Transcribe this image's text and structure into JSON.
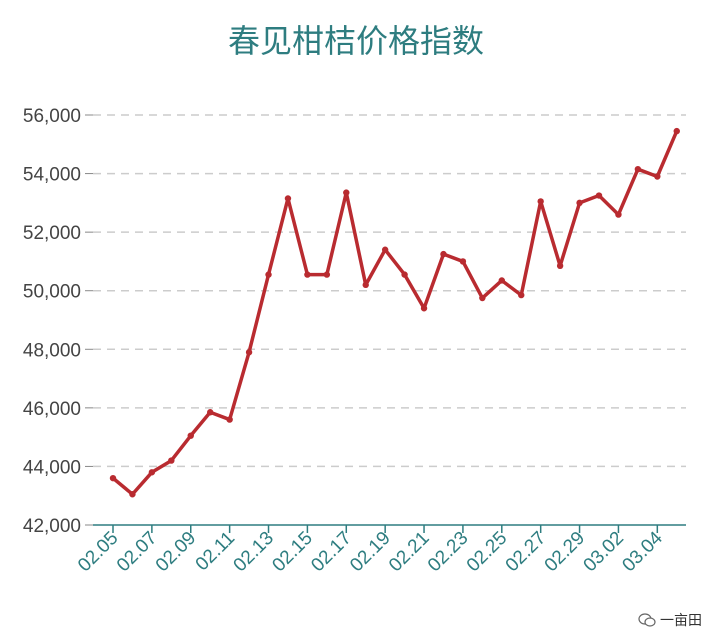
{
  "chart_data": {
    "type": "line",
    "title": "春见柑桔价格指数",
    "xlabel": "",
    "ylabel": "",
    "ylim": [
      42000,
      56000
    ],
    "yticks": [
      42000,
      44000,
      46000,
      48000,
      50000,
      52000,
      54000,
      56000
    ],
    "ytick_labels": [
      "42,000",
      "44,000",
      "46,000",
      "48,000",
      "50,000",
      "52,000",
      "54,000",
      "56,000"
    ],
    "x": [
      "02.05",
      "02.06",
      "02.07",
      "02.08",
      "02.09",
      "02.10",
      "02.11",
      "02.12",
      "02.13",
      "02.14",
      "02.15",
      "02.16",
      "02.17",
      "02.18",
      "02.19",
      "02.20",
      "02.21",
      "02.22",
      "02.23",
      "02.24",
      "02.25",
      "02.26",
      "02.27",
      "02.28",
      "02.29",
      "03.01",
      "03.02",
      "03.03",
      "03.04",
      "03.05"
    ],
    "xtick_labels": [
      "02.05",
      "02.07",
      "02.09",
      "02.11",
      "02.13",
      "02.15",
      "02.17",
      "02.19",
      "02.21",
      "02.23",
      "02.25",
      "02.27",
      "02.29",
      "03.02",
      "03.04"
    ],
    "values": [
      43600,
      43050,
      43800,
      44200,
      45050,
      45850,
      45600,
      47900,
      50550,
      53150,
      50550,
      50550,
      53350,
      50200,
      51400,
      50550,
      49400,
      51250,
      51000,
      49750,
      50350,
      49850,
      53050,
      50850,
      53000,
      53250,
      52600,
      54150,
      53900,
      55450
    ],
    "grid": true,
    "line_color": "#b92b30",
    "grid_color": "#cccccc",
    "title_color": "#2e7d80",
    "axis_color": "#2e7d80"
  },
  "watermark": {
    "text": "一亩田",
    "icon": "wechat-bubble-icon"
  }
}
